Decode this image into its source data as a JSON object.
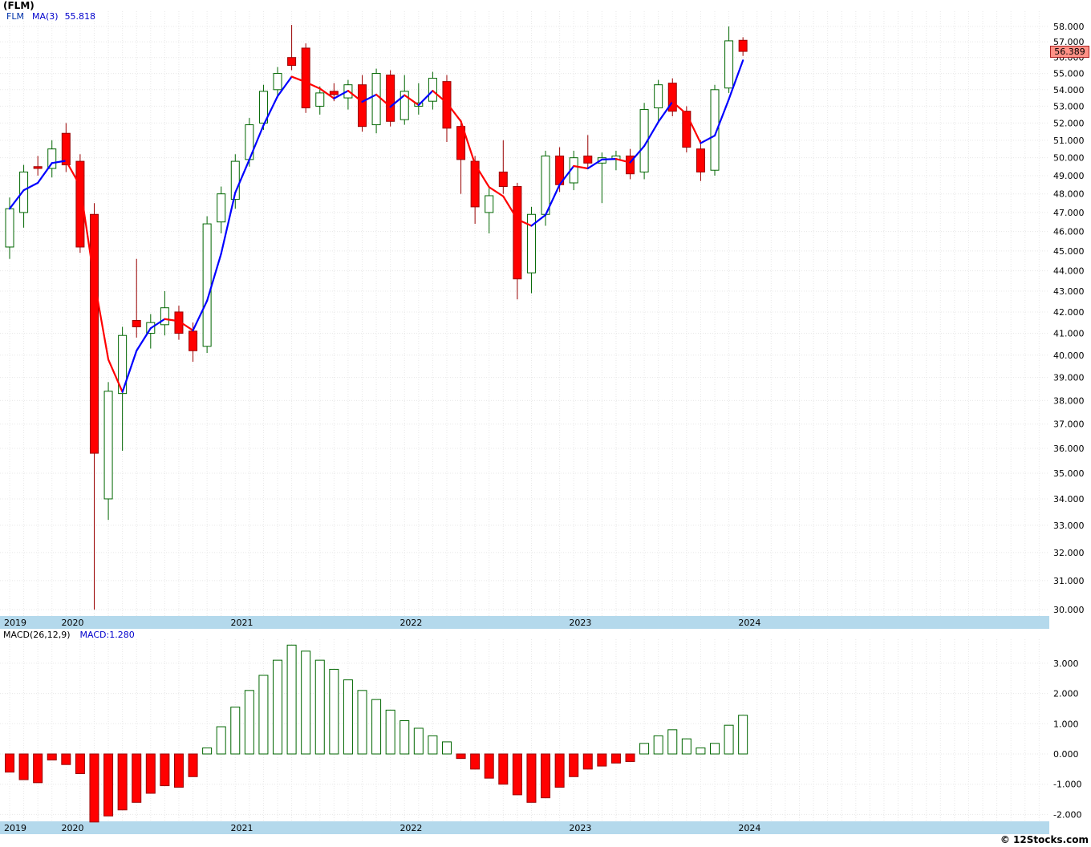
{
  "header": {
    "title": "(FLM)"
  },
  "price_legend": {
    "symbol": "FLM",
    "ma_label": "MA(3)",
    "ma_value": "55.818"
  },
  "macd_legend": {
    "label": "MACD(26,12,9)",
    "value_label": "MACD:1.280"
  },
  "last_price_badge": "56.389",
  "footer": {
    "copyright": "© 12Stocks.com"
  },
  "colors": {
    "up": "#006600",
    "down": "#ff0000",
    "down_edge": "#990000",
    "ma_rising": "#0000ff",
    "ma_falling": "#ff0000",
    "band": "#b4d9ec",
    "grid": "#e8e8e8",
    "badge_bg": "#ff9186",
    "badge_border": "#aa2222",
    "legend_blue": "#0000cc",
    "text": "#000000"
  },
  "chart_data": {
    "type": "candlestick+macd-histogram",
    "symbol": "FLM",
    "interval": "monthly",
    "x_year_labels": [
      "2019",
      "2020",
      "2021",
      "2022",
      "2023",
      "2024"
    ],
    "price_panel": {
      "scale": "log",
      "ma_period": 3,
      "ma_last": 55.818,
      "last_price": 56.389,
      "y_ticks": [
        58,
        57,
        56,
        55,
        54,
        53,
        52,
        51,
        50,
        49,
        48,
        47,
        46,
        45,
        44,
        43,
        42,
        41,
        40,
        39,
        38,
        37,
        36,
        35,
        34,
        33,
        32,
        31,
        30
      ],
      "candles": [
        {
          "d": "2019-09",
          "o": 45.2,
          "h": 47.8,
          "l": 44.6,
          "c": 47.2
        },
        {
          "d": "2019-10",
          "o": 47.0,
          "h": 49.6,
          "l": 46.2,
          "c": 49.2
        },
        {
          "d": "2019-11",
          "o": 49.5,
          "h": 50.1,
          "l": 49.0,
          "c": 49.4
        },
        {
          "d": "2019-12",
          "o": 49.4,
          "h": 51.0,
          "l": 48.9,
          "c": 50.5
        },
        {
          "d": "2020-01",
          "o": 51.4,
          "h": 52.0,
          "l": 49.2,
          "c": 49.6
        },
        {
          "d": "2020-02",
          "o": 49.8,
          "h": 50.2,
          "l": 44.9,
          "c": 45.2
        },
        {
          "d": "2020-03",
          "o": 46.9,
          "h": 47.5,
          "l": 30.0,
          "c": 35.8
        },
        {
          "d": "2020-04",
          "o": 34.0,
          "h": 38.8,
          "l": 33.2,
          "c": 38.4
        },
        {
          "d": "2020-05",
          "o": 38.3,
          "h": 41.3,
          "l": 35.9,
          "c": 40.9
        },
        {
          "d": "2020-06",
          "o": 41.6,
          "h": 44.6,
          "l": 40.8,
          "c": 41.3
        },
        {
          "d": "2020-07",
          "o": 41.0,
          "h": 41.9,
          "l": 40.3,
          "c": 41.5
        },
        {
          "d": "2020-08",
          "o": 41.4,
          "h": 43.0,
          "l": 40.9,
          "c": 42.2
        },
        {
          "d": "2020-09",
          "o": 42.0,
          "h": 42.3,
          "l": 40.7,
          "c": 41.0
        },
        {
          "d": "2020-10",
          "o": 41.1,
          "h": 41.5,
          "l": 39.7,
          "c": 40.2
        },
        {
          "d": "2020-11",
          "o": 40.4,
          "h": 46.8,
          "l": 40.1,
          "c": 46.4
        },
        {
          "d": "2020-12",
          "o": 46.5,
          "h": 48.4,
          "l": 45.9,
          "c": 48.0
        },
        {
          "d": "2021-01",
          "o": 47.7,
          "h": 50.2,
          "l": 47.2,
          "c": 49.8
        },
        {
          "d": "2021-02",
          "o": 49.9,
          "h": 52.3,
          "l": 49.5,
          "c": 51.9
        },
        {
          "d": "2021-03",
          "o": 52.0,
          "h": 54.3,
          "l": 51.6,
          "c": 53.9
        },
        {
          "d": "2021-04",
          "o": 54.0,
          "h": 55.4,
          "l": 53.5,
          "c": 55.0
        },
        {
          "d": "2021-05",
          "o": 56.0,
          "h": 58.1,
          "l": 55.2,
          "c": 55.5
        },
        {
          "d": "2021-06",
          "o": 56.6,
          "h": 56.9,
          "l": 52.6,
          "c": 52.9
        },
        {
          "d": "2021-07",
          "o": 53.0,
          "h": 54.2,
          "l": 52.5,
          "c": 53.8
        },
        {
          "d": "2021-08",
          "o": 53.9,
          "h": 54.4,
          "l": 53.3,
          "c": 53.7
        },
        {
          "d": "2021-09",
          "o": 53.5,
          "h": 54.6,
          "l": 52.8,
          "c": 54.3
        },
        {
          "d": "2021-10",
          "o": 54.3,
          "h": 54.9,
          "l": 51.5,
          "c": 51.8
        },
        {
          "d": "2021-11",
          "o": 51.9,
          "h": 55.3,
          "l": 51.4,
          "c": 55.0
        },
        {
          "d": "2021-12",
          "o": 54.9,
          "h": 55.2,
          "l": 51.8,
          "c": 52.1
        },
        {
          "d": "2022-01",
          "o": 52.2,
          "h": 54.9,
          "l": 51.9,
          "c": 53.9
        },
        {
          "d": "2022-02",
          "o": 53.0,
          "h": 54.4,
          "l": 52.5,
          "c": 53.2
        },
        {
          "d": "2022-03",
          "o": 53.3,
          "h": 55.1,
          "l": 52.8,
          "c": 54.7
        },
        {
          "d": "2022-04",
          "o": 54.5,
          "h": 54.9,
          "l": 50.9,
          "c": 51.7
        },
        {
          "d": "2022-05",
          "o": 51.8,
          "h": 52.2,
          "l": 48.0,
          "c": 49.9
        },
        {
          "d": "2022-06",
          "o": 49.8,
          "h": 50.1,
          "l": 46.4,
          "c": 47.3
        },
        {
          "d": "2022-07",
          "o": 47.0,
          "h": 48.3,
          "l": 45.9,
          "c": 47.9
        },
        {
          "d": "2022-08",
          "o": 49.2,
          "h": 51.0,
          "l": 48.0,
          "c": 48.4
        },
        {
          "d": "2022-09",
          "o": 48.4,
          "h": 48.6,
          "l": 42.6,
          "c": 43.6
        },
        {
          "d": "2022-10",
          "o": 43.9,
          "h": 47.3,
          "l": 42.9,
          "c": 46.9
        },
        {
          "d": "2022-11",
          "o": 46.9,
          "h": 50.4,
          "l": 46.3,
          "c": 50.1
        },
        {
          "d": "2022-12",
          "o": 50.1,
          "h": 50.6,
          "l": 48.1,
          "c": 48.5
        },
        {
          "d": "2023-01",
          "o": 48.6,
          "h": 50.4,
          "l": 48.2,
          "c": 50.0
        },
        {
          "d": "2023-02",
          "o": 50.1,
          "h": 51.3,
          "l": 49.4,
          "c": 49.7
        },
        {
          "d": "2023-03",
          "o": 49.7,
          "h": 50.3,
          "l": 47.5,
          "c": 50.0
        },
        {
          "d": "2023-04",
          "o": 49.9,
          "h": 50.4,
          "l": 49.3,
          "c": 50.1
        },
        {
          "d": "2023-05",
          "o": 50.1,
          "h": 50.5,
          "l": 48.8,
          "c": 49.1
        },
        {
          "d": "2023-06",
          "o": 49.2,
          "h": 53.2,
          "l": 48.8,
          "c": 52.8
        },
        {
          "d": "2023-07",
          "o": 52.9,
          "h": 54.6,
          "l": 52.1,
          "c": 54.3
        },
        {
          "d": "2023-08",
          "o": 54.4,
          "h": 54.7,
          "l": 52.4,
          "c": 52.7
        },
        {
          "d": "2023-09",
          "o": 52.7,
          "h": 53.0,
          "l": 50.3,
          "c": 50.6
        },
        {
          "d": "2023-10",
          "o": 50.5,
          "h": 51.0,
          "l": 48.7,
          "c": 49.2
        },
        {
          "d": "2023-11",
          "o": 49.3,
          "h": 54.3,
          "l": 49.0,
          "c": 54.0
        },
        {
          "d": "2023-12",
          "o": 54.1,
          "h": 58.0,
          "l": 53.8,
          "c": 57.065
        },
        {
          "d": "2024-01",
          "o": 57.1,
          "h": 57.3,
          "l": 56.1,
          "c": 56.389
        }
      ]
    },
    "macd_panel": {
      "params": "26,12,9",
      "last": 1.28,
      "y_ticks": [
        3,
        2,
        1,
        0,
        -1,
        -2
      ],
      "values": [
        -0.6,
        -0.85,
        -0.95,
        -0.2,
        -0.35,
        -0.65,
        -2.25,
        -2.05,
        -1.85,
        -1.6,
        -1.3,
        -1.05,
        -1.1,
        -0.75,
        0.2,
        0.9,
        1.55,
        2.1,
        2.6,
        3.1,
        3.6,
        3.4,
        3.1,
        2.8,
        2.45,
        2.1,
        1.8,
        1.45,
        1.1,
        0.85,
        0.6,
        0.4,
        -0.15,
        -0.5,
        -0.8,
        -1.0,
        -1.35,
        -1.6,
        -1.45,
        -1.1,
        -0.75,
        -0.5,
        -0.4,
        -0.3,
        -0.25,
        0.35,
        0.6,
        0.8,
        0.5,
        0.2,
        0.35,
        0.95,
        1.28
      ]
    }
  }
}
